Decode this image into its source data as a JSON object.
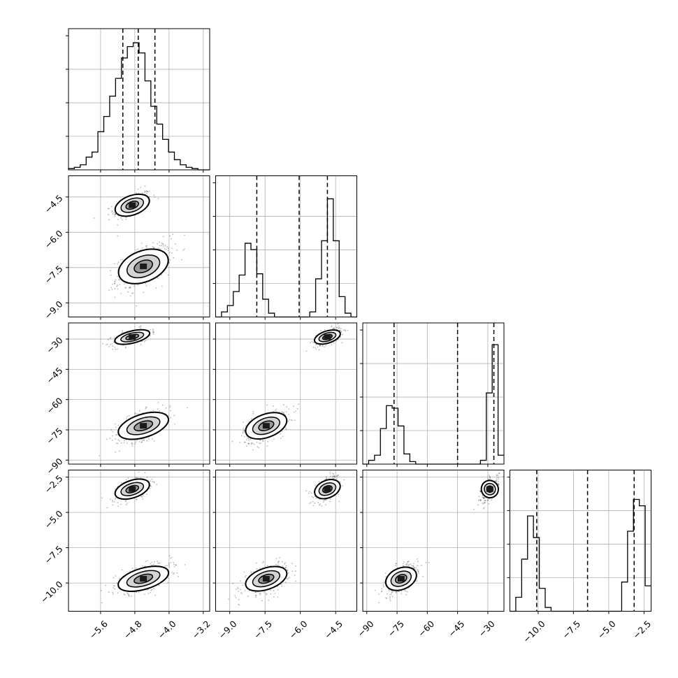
{
  "chart_data": {
    "type": "corner",
    "parameters": [
      {
        "ticks": [
          -5.6,
          -4.8,
          -4.0,
          -3.2
        ],
        "tick_labels": [
          "−5.6",
          "−4.8",
          "−4.0",
          "−3.2"
        ],
        "range": [
          -6.35,
          -3.05
        ]
      },
      {
        "ticks": [
          -9.0,
          -7.5,
          -6.0,
          -4.5
        ],
        "tick_labels": [
          "−9.0",
          "−7.5",
          "−6.0",
          "−4.5"
        ],
        "range": [
          -9.6,
          -3.6
        ]
      },
      {
        "ticks": [
          -90,
          -75,
          -60,
          -45,
          -30
        ],
        "tick_labels": [
          "−90",
          "−75",
          "−60",
          "−45",
          "−30"
        ],
        "range": [
          -92,
          -22
        ]
      },
      {
        "ticks": [
          -10.0,
          -7.5,
          -5.0,
          -2.5
        ],
        "tick_labels": [
          "−10.0",
          "−7.5",
          "−5.0",
          "−2.5"
        ],
        "range": [
          -12,
          -2.0
        ]
      }
    ],
    "quantiles": [
      [
        -5.08,
        -4.72,
        -4.33
      ],
      [
        -7.85,
        -6.05,
        -4.85
      ],
      [
        -76.5,
        -45.0,
        -27.0
      ],
      [
        -10.1,
        -6.5,
        -3.2
      ]
    ],
    "histograms": [
      {
        "counts": [
          0.01,
          0.02,
          0.04,
          0.1,
          0.14,
          0.3,
          0.42,
          0.58,
          0.72,
          0.88,
          0.97,
          1.0,
          0.92,
          0.7,
          0.5,
          0.36,
          0.24,
          0.14,
          0.08,
          0.04,
          0.02,
          0.01,
          0.0,
          0.0
        ]
      },
      {
        "counts": [
          0.0,
          0.04,
          0.09,
          0.2,
          0.33,
          0.58,
          0.53,
          0.34,
          0.14,
          0.03,
          0.0,
          0.0,
          0.0,
          0.0,
          0.0,
          0.0,
          0.04,
          0.3,
          0.6,
          0.93,
          0.6,
          0.16,
          0.03,
          0.0
        ]
      },
      {
        "counts": [
          0.0,
          0.03,
          0.07,
          0.28,
          0.46,
          0.44,
          0.3,
          0.08,
          0.02,
          0.0,
          0.0,
          0.0,
          0.0,
          0.0,
          0.0,
          0.0,
          0.0,
          0.0,
          0.0,
          0.0,
          0.03,
          0.56,
          0.94,
          0.07
        ]
      },
      {
        "counts": [
          0.0,
          0.11,
          0.41,
          0.75,
          0.58,
          0.18,
          0.03,
          0.0,
          0.0,
          0.0,
          0.0,
          0.0,
          0.0,
          0.0,
          0.0,
          0.0,
          0.0,
          0.0,
          0.0,
          0.23,
          0.63,
          0.88,
          0.83,
          0.2
        ]
      }
    ],
    "modes": [
      {
        "weight": 0.42,
        "mean": [
          -4.86,
          -4.85,
          -29.0,
          -3.35
        ]
      },
      {
        "weight": 0.58,
        "mean": [
          -4.6,
          -7.45,
          -73.0,
          -9.7
        ]
      }
    ]
  },
  "colors": {
    "axis": "#000000",
    "grid": "#b0b0b0",
    "contour": "#000000",
    "point": "#000000"
  }
}
